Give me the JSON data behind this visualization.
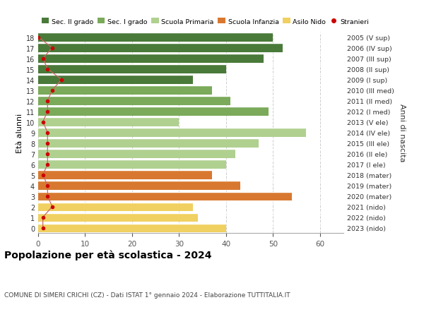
{
  "ages": [
    18,
    17,
    16,
    15,
    14,
    13,
    12,
    11,
    10,
    9,
    8,
    7,
    6,
    5,
    4,
    3,
    2,
    1,
    0
  ],
  "years": [
    "2005 (V sup)",
    "2006 (IV sup)",
    "2007 (III sup)",
    "2008 (II sup)",
    "2009 (I sup)",
    "2010 (III med)",
    "2011 (II med)",
    "2012 (I med)",
    "2013 (V ele)",
    "2014 (IV ele)",
    "2015 (III ele)",
    "2016 (II ele)",
    "2017 (I ele)",
    "2018 (mater)",
    "2019 (mater)",
    "2020 (mater)",
    "2021 (nido)",
    "2022 (nido)",
    "2023 (nido)"
  ],
  "values": [
    50,
    52,
    48,
    40,
    33,
    37,
    41,
    49,
    30,
    57,
    47,
    42,
    40,
    37,
    43,
    54,
    33,
    34,
    40
  ],
  "stranieri": [
    0,
    3,
    1,
    2,
    5,
    3,
    2,
    2,
    1,
    2,
    2,
    2,
    2,
    1,
    2,
    2,
    3,
    1,
    1
  ],
  "bar_colors": {
    "sec2": "#4a7a3a",
    "sec1": "#7aaa5a",
    "primaria": "#b0d090",
    "infanzia": "#d87830",
    "nido": "#f0d060"
  },
  "category_ranges": {
    "sec2": [
      14,
      18
    ],
    "sec1": [
      11,
      13
    ],
    "primaria": [
      6,
      10
    ],
    "infanzia": [
      3,
      5
    ],
    "nido": [
      0,
      2
    ]
  },
  "legend_labels": [
    "Sec. II grado",
    "Sec. I grado",
    "Scuola Primaria",
    "Scuola Infanzia",
    "Asilo Nido",
    "Stranieri"
  ],
  "legend_colors": [
    "#4a7a3a",
    "#7aaa5a",
    "#b0d090",
    "#d87830",
    "#f0d060",
    "#cc0000"
  ],
  "ylabel": "Età alunni",
  "right_ylabel": "Anni di nascita",
  "title": "Popolazione per età scolastica - 2024",
  "subtitle": "COMUNE DI SIMERI CRICHI (CZ) - Dati ISTAT 1° gennaio 2024 - Elaborazione TUTTITALIA.IT",
  "xlim": [
    0,
    65
  ],
  "xticks": [
    0,
    10,
    20,
    30,
    40,
    50,
    60
  ],
  "bg_color": "#ffffff",
  "bar_height": 0.82,
  "stranieri_color": "#cc0000",
  "stranieri_line_color": "#cc6666"
}
